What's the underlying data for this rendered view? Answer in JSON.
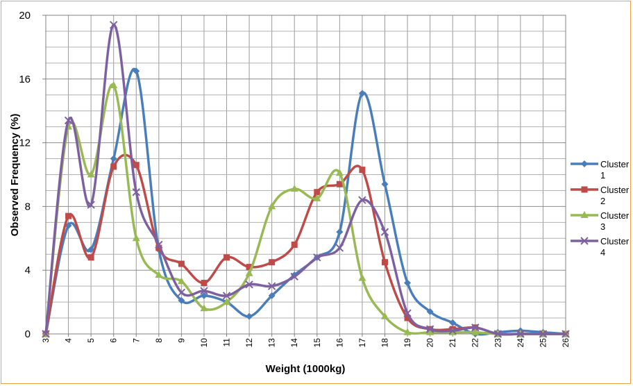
{
  "chart_data": {
    "type": "line",
    "title": "",
    "xlabel": "Weight (1000kg)",
    "ylabel": "Observed Frequency (%)",
    "x": [
      3,
      4,
      5,
      6,
      7,
      8,
      9,
      10,
      11,
      12,
      13,
      14,
      15,
      16,
      17,
      18,
      19,
      20,
      21,
      22,
      23,
      24,
      25,
      26
    ],
    "ylim": [
      0,
      20
    ],
    "yticks": [
      0,
      4,
      8,
      12,
      16,
      20
    ],
    "grid": true,
    "smooth": true,
    "legend": "right",
    "series": [
      {
        "name": "Cluster 1",
        "color": "#4A7EBB",
        "marker": "diamond",
        "values": [
          0,
          6.8,
          5.3,
          11.0,
          16.5,
          5.3,
          2.1,
          2.4,
          2.0,
          1.1,
          2.4,
          3.7,
          4.8,
          6.4,
          15.1,
          9.4,
          3.2,
          1.4,
          0.7,
          0.0,
          0.1,
          0.2,
          0.1,
          0.0
        ]
      },
      {
        "name": "Cluster 2",
        "color": "#BE4B48",
        "marker": "square",
        "values": [
          0,
          7.4,
          4.8,
          10.5,
          10.6,
          5.4,
          4.4,
          3.2,
          4.8,
          4.2,
          4.5,
          5.6,
          8.9,
          9.4,
          10.3,
          4.5,
          1.0,
          0.3,
          0.3,
          0.4,
          0.0,
          0.0,
          0.0,
          0.0
        ]
      },
      {
        "name": "Cluster 3",
        "color": "#98B954",
        "marker": "triangle",
        "values": [
          0,
          13.0,
          10.0,
          15.6,
          6.0,
          3.7,
          3.3,
          1.6,
          2.0,
          3.8,
          8.0,
          9.1,
          8.5,
          10.1,
          3.5,
          1.1,
          0.1,
          0.1,
          0.1,
          0.1,
          0.0,
          0.0,
          0.0,
          0.0
        ]
      },
      {
        "name": "Cluster 4",
        "color": "#7D60A0",
        "marker": "x",
        "values": [
          0,
          13.4,
          8.1,
          19.4,
          8.9,
          5.6,
          2.6,
          2.7,
          2.4,
          3.1,
          3.0,
          3.6,
          4.8,
          5.4,
          8.4,
          6.4,
          1.3,
          0.3,
          0.2,
          0.4,
          0.0,
          0.0,
          0.0,
          0.0
        ]
      }
    ]
  }
}
